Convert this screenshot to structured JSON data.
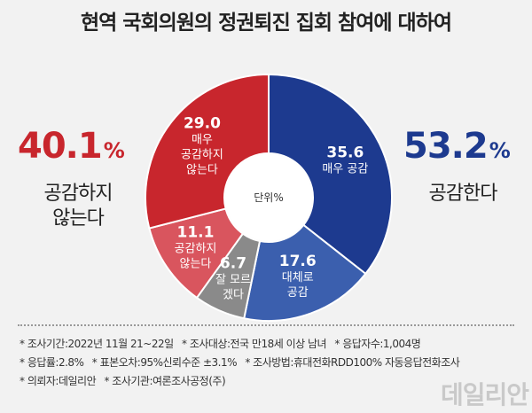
{
  "title": "현역 국회의원의 정권퇴진 집회 참여에 대하여",
  "left_total": {
    "value": "40.1",
    "unit": "%",
    "label_line1": "공감하지",
    "label_line2": "않는다"
  },
  "right_total": {
    "value": "53.2",
    "unit": "%",
    "label_line1": "공감한다"
  },
  "center_label": "단위%",
  "chart_data": {
    "type": "pie",
    "title": "현역 국회의원의 정권퇴진 집회 참여에 대하여",
    "unit": "%",
    "slices": [
      {
        "label": "매우 공감",
        "value": 35.6,
        "color": "#1d3a8f"
      },
      {
        "label": "대체로 공감",
        "value": 17.6,
        "color": "#3b5fae"
      },
      {
        "label": "잘 모르겠다",
        "value": 6.7,
        "color": "#8a8a8a"
      },
      {
        "label": "공감하지 않는다",
        "value": 11.1,
        "color": "#d9555e"
      },
      {
        "label": "매우 공감하지 않는다",
        "value": 29.0,
        "color": "#c8262d"
      }
    ],
    "slice_text": [
      {
        "value": "35.6",
        "lines": [
          "매우 공감"
        ]
      },
      {
        "value": "17.6",
        "lines": [
          "대체로",
          "공감"
        ]
      },
      {
        "value": "6.7",
        "lines": [
          "잘 모르",
          "겠다"
        ]
      },
      {
        "value": "11.1",
        "lines": [
          "공감하지",
          "않는다"
        ]
      },
      {
        "value": "29.0",
        "lines": [
          "매우",
          "공감하지",
          "않는다"
        ]
      }
    ]
  },
  "notes": {
    "line1": [
      "* 조사기간:2022년 11월 21~22일",
      "* 조사대상:전국 만18세 이상 남녀",
      "* 응답자수:1,004명"
    ],
    "line2": [
      "* 응답률:2.8%",
      "* 표본오차:95%신뢰수준 ±3.1%",
      "* 조사방법:휴대전화RDD100% 자동응답전화조사"
    ],
    "line3": [
      "* 의뢰자:데일리안",
      "* 조사기관:여론조사공정(주)"
    ]
  },
  "watermark": "데일리안"
}
